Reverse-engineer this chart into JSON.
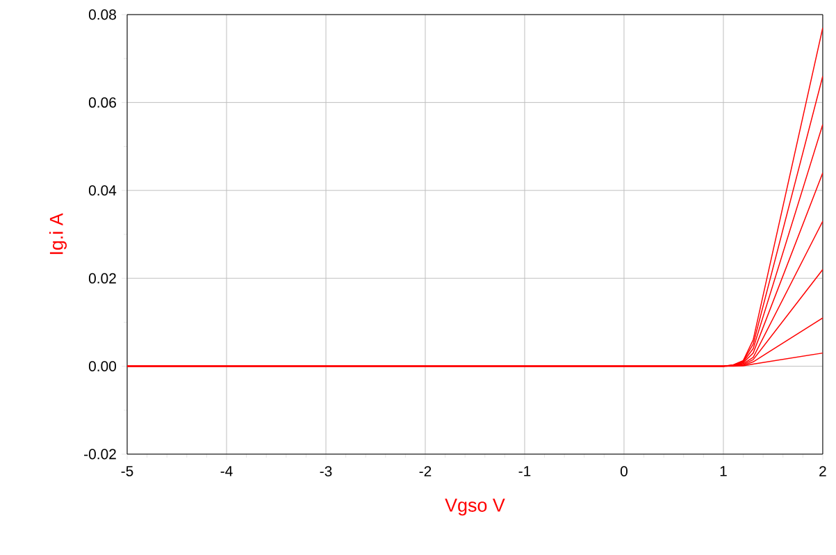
{
  "chart_data": {
    "type": "line",
    "xlabel": "Vgso V",
    "ylabel": "Ig.i  A",
    "x": [
      -5,
      1.0,
      1.1,
      1.2,
      1.3,
      2.0
    ],
    "series": [
      {
        "color": "#ff0000",
        "values": [
          0,
          0,
          0.0003,
          0.0013,
          0.006,
          0.077
        ]
      },
      {
        "color": "#ff0000",
        "values": [
          0,
          0,
          0.0003,
          0.0012,
          0.005,
          0.066
        ]
      },
      {
        "color": "#ff0000",
        "values": [
          0,
          0,
          0.0002,
          0.001,
          0.004,
          0.055
        ]
      },
      {
        "color": "#ff0000",
        "values": [
          0,
          0,
          0.0002,
          0.0008,
          0.003,
          0.044
        ]
      },
      {
        "color": "#ff0000",
        "values": [
          0,
          0,
          0.0001,
          0.0006,
          0.002,
          0.033
        ]
      },
      {
        "color": "#ff0000",
        "values": [
          0,
          0,
          0.0001,
          0.0004,
          0.0015,
          0.022
        ]
      },
      {
        "color": "#ff0000",
        "values": [
          0,
          0,
          0.0001,
          0.0002,
          0.001,
          0.011
        ]
      },
      {
        "color": "#ff0000",
        "values": [
          0,
          0,
          0,
          0.0001,
          0.0005,
          0.003
        ]
      }
    ],
    "xlim": [
      -5,
      2
    ],
    "ylim": [
      -0.02,
      0.08
    ],
    "xticks": [
      -5,
      -4,
      -3,
      -2,
      -1,
      0,
      1,
      2
    ],
    "yticks": [
      {
        "value": -0.02,
        "label": "-0.02"
      },
      {
        "value": 0,
        "label": "0.00"
      },
      {
        "value": 0.02,
        "label": "0.02"
      },
      {
        "value": 0.04,
        "label": "0.04"
      },
      {
        "value": 0.06,
        "label": "0.06"
      },
      {
        "value": 0.08,
        "label": "0.08"
      }
    ],
    "grid": true,
    "marker": "none",
    "line_style": "solid"
  }
}
